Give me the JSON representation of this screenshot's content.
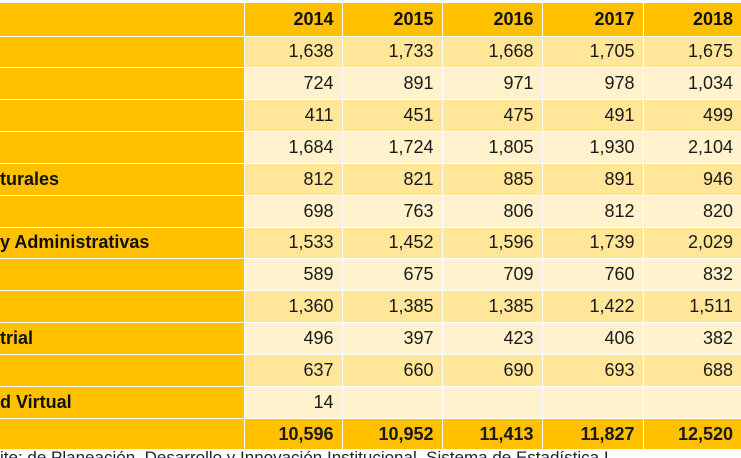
{
  "header": [
    "",
    "2014",
    "2015",
    "2016",
    "2017",
    "2018"
  ],
  "rows": [
    {
      "label": "",
      "values": [
        "1,638",
        "1,733",
        "1,668",
        "1,705",
        "1,675"
      ]
    },
    {
      "label": "",
      "values": [
        "724",
        "891",
        "971",
        "978",
        "1,034"
      ]
    },
    {
      "label": "",
      "values": [
        "411",
        "451",
        "475",
        "491",
        "499"
      ]
    },
    {
      "label": "",
      "values": [
        "1,684",
        "1,724",
        "1,805",
        "1,930",
        "2,104"
      ]
    },
    {
      "label": "turales",
      "values": [
        "812",
        "821",
        "885",
        "891",
        "946"
      ]
    },
    {
      "label": "",
      "values": [
        "698",
        "763",
        "806",
        "812",
        "820"
      ]
    },
    {
      "label": "y Administrativas",
      "values": [
        "1,533",
        "1,452",
        "1,596",
        "1,739",
        "2,029"
      ]
    },
    {
      "label": "",
      "values": [
        "589",
        "675",
        "709",
        "760",
        "832"
      ]
    },
    {
      "label": "",
      "values": [
        "1,360",
        "1,385",
        "1,385",
        "1,422",
        "1,511"
      ]
    },
    {
      "label": "trial",
      "values": [
        "496",
        "397",
        "423",
        "406",
        "382"
      ]
    },
    {
      "label": "",
      "values": [
        "637",
        "660",
        "690",
        "693",
        "688"
      ]
    },
    {
      "label": "d Virtual",
      "values": [
        "14",
        "",
        "",
        "",
        ""
      ]
    }
  ],
  "total": {
    "label": "",
    "values": [
      "10,596",
      "10,952",
      "11,413",
      "11,827",
      "12,520"
    ]
  },
  "footnote": "ite: de Planeación, Desarrollo y Innovación Institucional, Sistema de Estadística I"
}
